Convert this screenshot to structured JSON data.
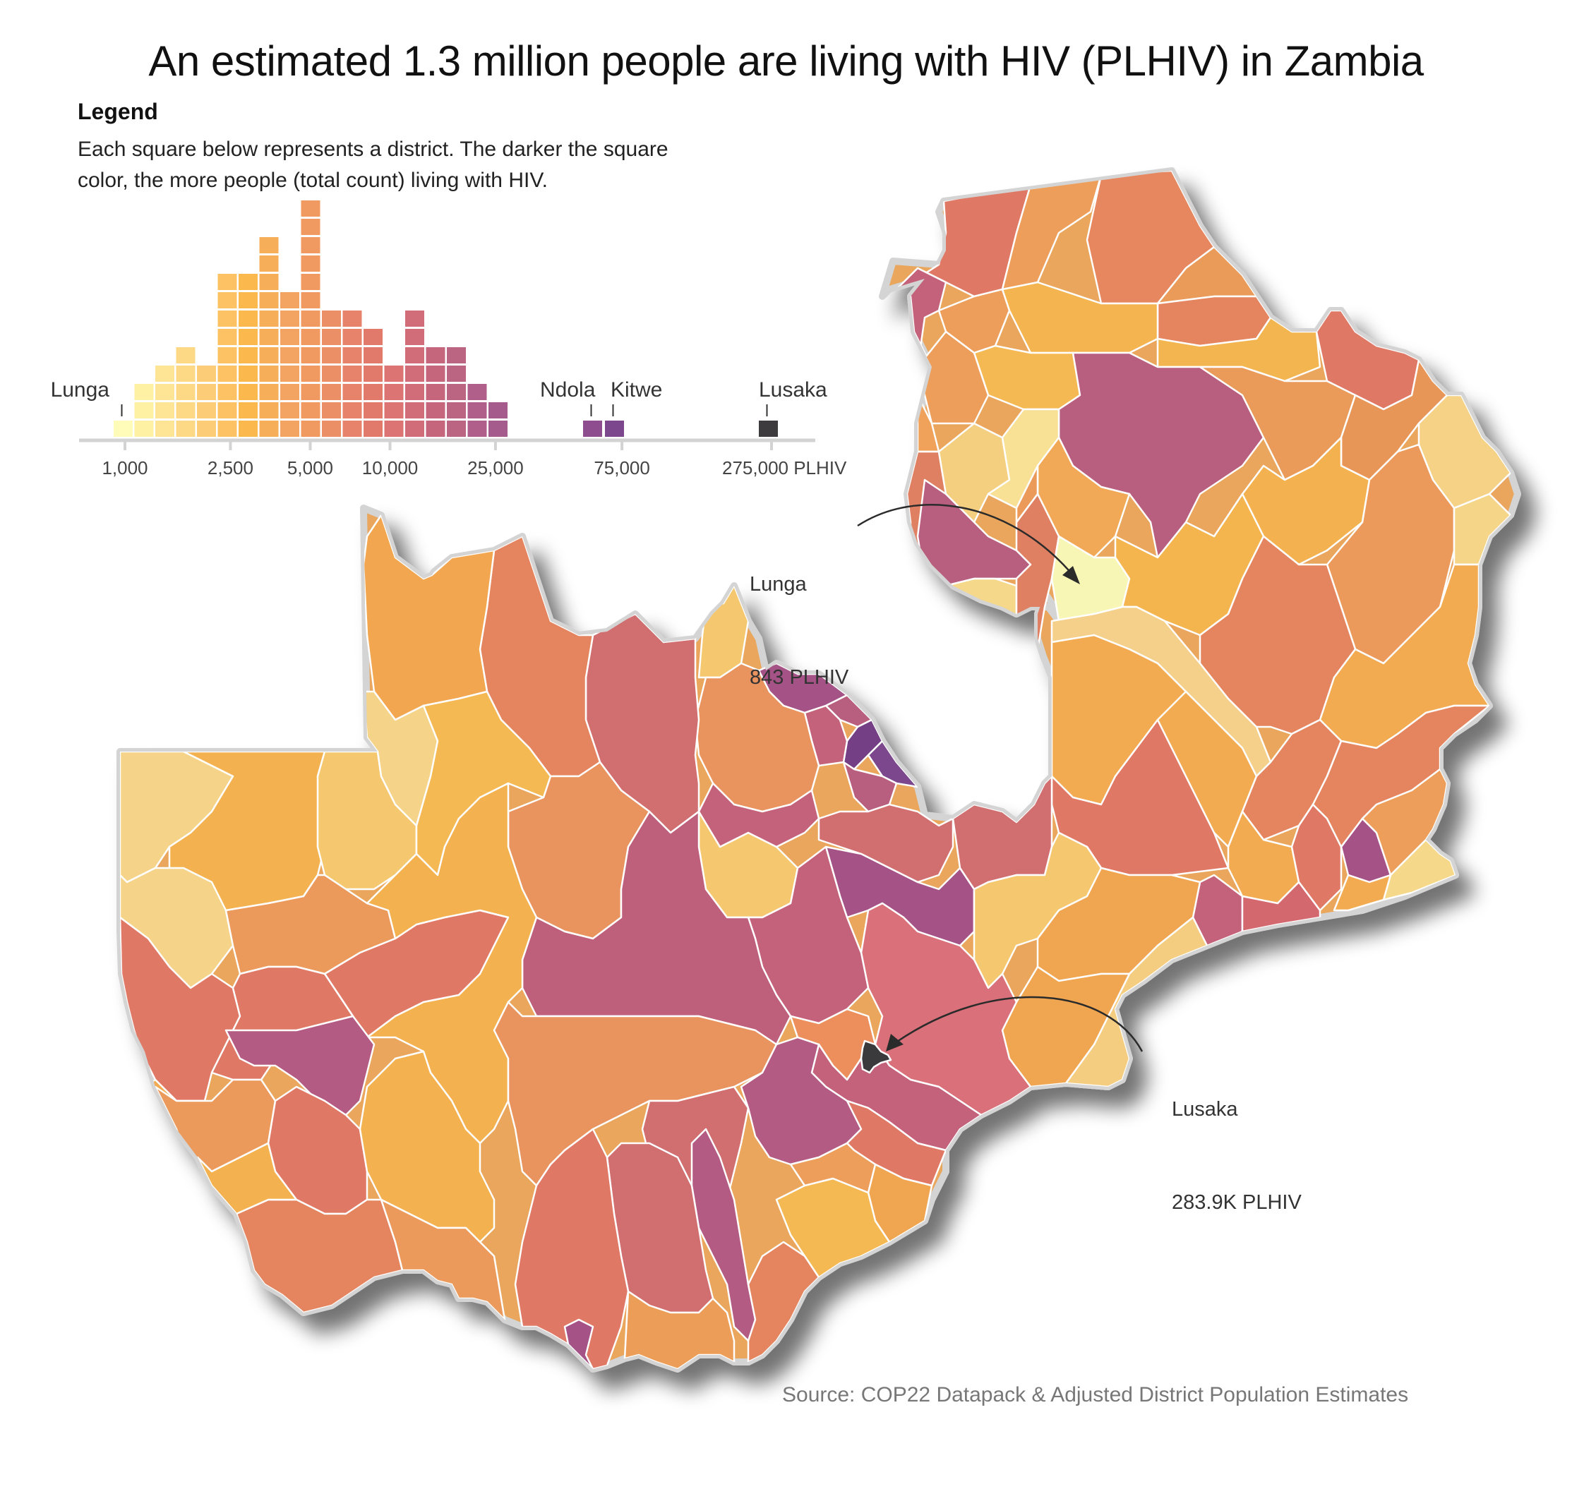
{
  "title": "An estimated 1.3 million people are living with HIV (PLHIV) in Zambia",
  "legend": {
    "heading": "Legend",
    "description_line1": "Each square below represents a district. The darker the  square",
    "description_line2": "color, the more people (total count) living with HIV."
  },
  "chart_data": {
    "type": "histogram",
    "title": "Districts by number of PLHIV (log scale)",
    "unit_label": "PLHIV",
    "x_scale": "log",
    "x_ticks": [
      {
        "value": 1000,
        "label": "1,000"
      },
      {
        "value": 2500,
        "label": "2,500"
      },
      {
        "value": 5000,
        "label": "5,000"
      },
      {
        "value": 10000,
        "label": "10,000"
      },
      {
        "value": 25000,
        "label": "25,000"
      },
      {
        "value": 75000,
        "label": "75,000"
      },
      {
        "value": 275000,
        "label": "275,000 PLHIV"
      }
    ],
    "bins": [
      {
        "count": 1,
        "color": "#fefcb8",
        "label": "Lunga"
      },
      {
        "count": 3,
        "color": "#fef1a3"
      },
      {
        "count": 4,
        "color": "#fee595"
      },
      {
        "count": 5,
        "color": "#fdd985"
      },
      {
        "count": 4,
        "color": "#fdcc76"
      },
      {
        "count": 9,
        "color": "#fcc264"
      },
      {
        "count": 9,
        "color": "#fbb94d"
      },
      {
        "count": 11,
        "color": "#f6ae58"
      },
      {
        "count": 8,
        "color": "#f4a462"
      },
      {
        "count": 13,
        "color": "#f09a62"
      },
      {
        "count": 7,
        "color": "#eb8f67"
      },
      {
        "count": 7,
        "color": "#e7836b"
      },
      {
        "count": 6,
        "color": "#e27a6b"
      },
      {
        "count": 4,
        "color": "#db7472"
      },
      {
        "count": 7,
        "color": "#d16d79"
      },
      {
        "count": 5,
        "color": "#c6667c"
      },
      {
        "count": 5,
        "color": "#bb6583"
      },
      {
        "count": 3,
        "color": "#b05e8a"
      },
      {
        "count": 2,
        "color": "#a55b8c"
      }
    ],
    "outliers": [
      {
        "name": "Ndola",
        "count": 1,
        "approx_value": 70000,
        "color": "#8d4d8f"
      },
      {
        "name": "Kitwe",
        "count": 1,
        "approx_value": 80000,
        "color": "#7c478c"
      },
      {
        "name": "Lusaka",
        "count": 1,
        "value": 283900,
        "color": "#3d3b3e"
      }
    ],
    "labelled_districts": [
      "Lunga",
      "Ndola",
      "Kitwe",
      "Lusaka"
    ]
  },
  "map": {
    "country": "Zambia",
    "annotations": [
      {
        "district": "Lunga",
        "line1": "Lunga",
        "line2": "843 PLHIV",
        "value": 843
      },
      {
        "district": "Lusaka",
        "line1": "Lusaka",
        "line2": "283.9K PLHIV",
        "value": 283900
      }
    ],
    "colors": {
      "border": "#ffffff",
      "outline": "#d4d4d4",
      "lunga": "#f8f6b4",
      "lusaka": "#3a3a3c",
      "arrow": "#2b2b2b"
    }
  },
  "source": "Source: COP22 Datapack & Adjusted District Population Estimates"
}
